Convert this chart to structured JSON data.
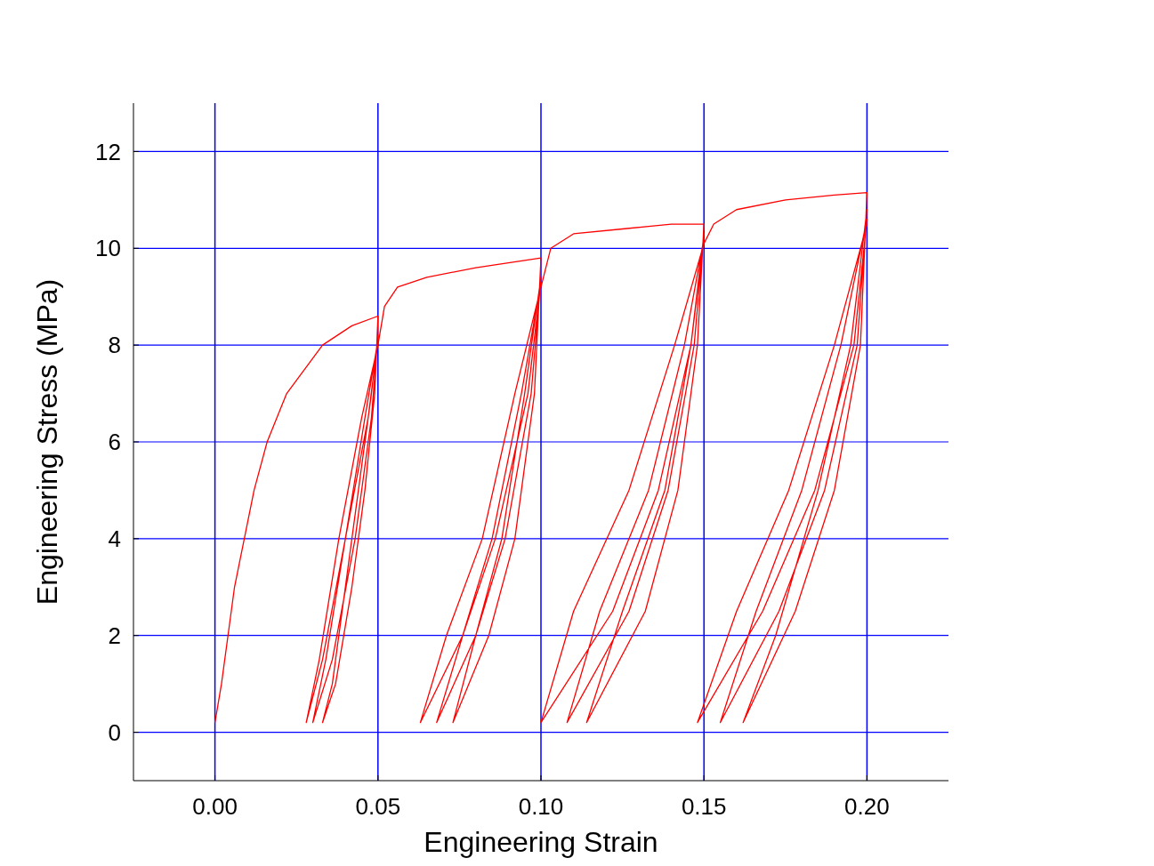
{
  "chart_data": {
    "type": "line",
    "xlabel": "Engineering Strain",
    "ylabel": "Engineering Stress (MPa)",
    "xlim": [
      -0.025,
      0.225
    ],
    "ylim": [
      -1,
      13
    ],
    "xticks": [
      {
        "value": 0,
        "label": "0.00"
      },
      {
        "value": 0.05,
        "label": "0.05"
      },
      {
        "value": 0.1,
        "label": "0.10"
      },
      {
        "value": 0.15,
        "label": "0.15"
      },
      {
        "value": 0.2,
        "label": "0.20"
      }
    ],
    "yticks": [
      0,
      2,
      4,
      6,
      8,
      10,
      12
    ],
    "grid": true,
    "series": [
      {
        "color": "#ff0000",
        "x": [
          0,
          0.002,
          0.004,
          0.006,
          0.009,
          0.012,
          0.016,
          0.022,
          0.033,
          0.042,
          0.05,
          0.049,
          0.046,
          0.042,
          0.037,
          0.033,
          0.036,
          0.04,
          0.044,
          0.048,
          0.05,
          0.048,
          0.043,
          0.036,
          0.03,
          0.034,
          0.04,
          0.046,
          0.05,
          0.047,
          0.04,
          0.033,
          0.028,
          0.032,
          0.038,
          0.045,
          0.05,
          0.052,
          0.056,
          0.065,
          0.08,
          0.1,
          0.098,
          0.092,
          0.084,
          0.073,
          0.08,
          0.088,
          0.095,
          0.1,
          0.097,
          0.089,
          0.08,
          0.068,
          0.076,
          0.085,
          0.094,
          0.1,
          0.096,
          0.086,
          0.076,
          0.063,
          0.071,
          0.082,
          0.092,
          0.1,
          0.103,
          0.11,
          0.125,
          0.14,
          0.15,
          0.148,
          0.142,
          0.132,
          0.114,
          0.125,
          0.138,
          0.146,
          0.15,
          0.147,
          0.139,
          0.127,
          0.108,
          0.118,
          0.133,
          0.144,
          0.15,
          0.146,
          0.136,
          0.122,
          0.1,
          0.11,
          0.127,
          0.141,
          0.15,
          0.153,
          0.16,
          0.175,
          0.19,
          0.2,
          0.198,
          0.19,
          0.178,
          0.162,
          0.172,
          0.185,
          0.195,
          0.2,
          0.197,
          0.187,
          0.173,
          0.155,
          0.166,
          0.18,
          0.192,
          0.2,
          0.196,
          0.184,
          0.168,
          0.148,
          0.16,
          0.176,
          0.19,
          0.2
        ],
        "values": [
          0.2,
          1,
          2,
          3,
          4,
          5,
          6,
          7,
          8,
          8.4,
          8.6,
          7,
          5,
          3,
          1,
          0.2,
          1,
          3,
          5,
          7,
          8.2,
          6.5,
          4,
          1.5,
          0.2,
          1.5,
          4,
          6.5,
          8.1,
          6.5,
          4,
          1.5,
          0.2,
          1.5,
          4,
          6.5,
          8,
          8.8,
          9.2,
          9.4,
          9.6,
          9.8,
          7,
          4,
          2,
          0.2,
          2,
          4,
          7,
          9.4,
          7,
          4,
          2,
          0.2,
          2,
          4,
          7,
          9.3,
          7,
          4,
          2,
          0.2,
          2,
          4,
          7,
          9.2,
          10,
          10.3,
          10.4,
          10.5,
          10.5,
          8,
          5,
          2.5,
          0.2,
          2.5,
          5,
          8,
          10.3,
          8,
          5,
          2.5,
          0.2,
          2.5,
          5,
          8,
          10.2,
          8,
          5,
          2.5,
          0.2,
          2.5,
          5,
          8,
          10.1,
          10.5,
          10.8,
          11,
          11.1,
          11.15,
          8,
          5,
          2.5,
          0.2,
          2,
          5,
          8,
          10.8,
          8,
          5,
          2.5,
          0.2,
          2.5,
          5,
          8,
          10.6,
          8,
          5,
          2.5,
          0.2,
          2.5,
          5,
          8,
          10.5
        ]
      }
    ]
  }
}
